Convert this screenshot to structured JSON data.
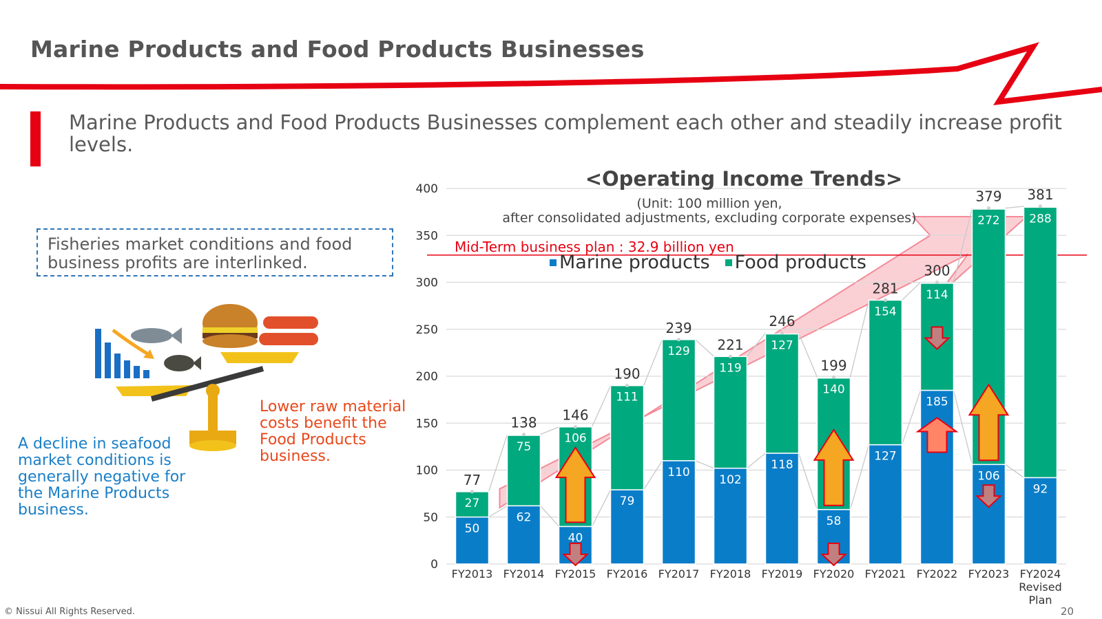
{
  "slide": {
    "title": "Marine Products and Food Products Businesses",
    "lead": "Marine Products and Food  Products Businesses complement each other and steadily increase profit levels.",
    "callout": "Fisheries market conditions and food business profits are interlinked.",
    "note_red": "Lower raw material costs benefit the Food Products business.",
    "note_blue": "A decline in seafood market conditions is generally negative for the Marine Products business.",
    "copyright": "© Nissui All Rights Reserved.",
    "page_number": "20"
  },
  "colors": {
    "brand_red": "#e60012",
    "marine": "#0a7dc9",
    "food": "#00a97e",
    "arrow_up": "#f5a623",
    "arrow_down": "#c08080"
  },
  "chart_data": {
    "type": "bar",
    "stacked": true,
    "title": "<Operating Income Trends>",
    "unit_note": "(Unit: 100 million yen,\nafter consolidated adjustments, excluding corporate expenses)",
    "categories": [
      "FY2013",
      "FY2014",
      "FY2015",
      "FY2016",
      "FY2017",
      "FY2018",
      "FY2019",
      "FY2020",
      "FY2021",
      "FY2022",
      "FY2023",
      "FY2024\nRevised\nPlan"
    ],
    "series": [
      {
        "name": "Marine products",
        "values": [
          50,
          62,
          40,
          79,
          110,
          102,
          118,
          58,
          127,
          185,
          106,
          92
        ]
      },
      {
        "name": "Food products",
        "values": [
          27,
          75,
          106,
          111,
          129,
          119,
          127,
          140,
          154,
          114,
          272,
          288
        ]
      }
    ],
    "totals": [
      77,
      138,
      146,
      190,
      239,
      221,
      246,
      199,
      281,
      300,
      379,
      381
    ],
    "ylim": [
      0,
      400
    ],
    "yticks": [
      0,
      50,
      100,
      150,
      200,
      250,
      300,
      350,
      400
    ],
    "grid": true,
    "legend_position": "top-center",
    "reference_line": {
      "value": 329,
      "label": "Mid-Term business plan : 32.9 billion yen"
    },
    "annotations": [
      {
        "category": "FY2015",
        "series": "Food products",
        "direction": "up"
      },
      {
        "category": "FY2015",
        "series": "Marine products",
        "direction": "down"
      },
      {
        "category": "FY2020",
        "series": "Food products",
        "direction": "up"
      },
      {
        "category": "FY2020",
        "series": "Marine products",
        "direction": "down"
      },
      {
        "category": "FY2022",
        "series": "Marine products",
        "direction": "up"
      },
      {
        "category": "FY2022",
        "series": "Food products",
        "direction": "down"
      },
      {
        "category": "FY2023",
        "series": "Food products",
        "direction": "up"
      },
      {
        "category": "FY2023",
        "series": "Marine products",
        "direction": "down"
      }
    ]
  }
}
